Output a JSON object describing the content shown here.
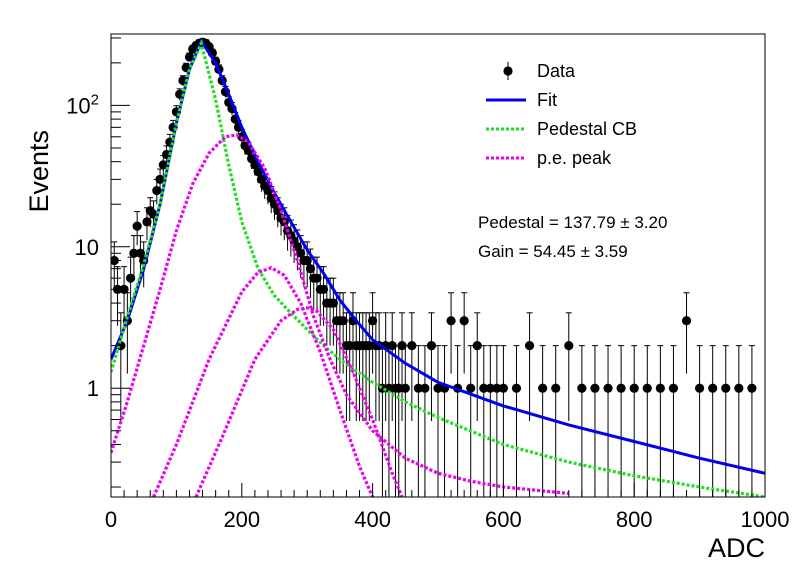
{
  "chart_data": {
    "type": "scatter",
    "title": "",
    "xlabel": "ADC",
    "ylabel": "Events",
    "xlim": [
      0,
      1000
    ],
    "ylim": [
      0.17,
      320
    ],
    "yscale": "log",
    "x_ticks": [
      0,
      200,
      400,
      600,
      800,
      1000
    ],
    "x_tick_labels": [
      "0",
      "200",
      "400",
      "600",
      "800",
      "1000"
    ],
    "y_ticks": [
      1,
      10,
      100
    ],
    "y_tick_labels": [
      "1",
      "10",
      "10^2"
    ],
    "legend": {
      "position": "top-right",
      "entries": [
        {
          "label": "Data",
          "color": "#000000",
          "style": "marker"
        },
        {
          "label": "Fit",
          "color": "#0000ee",
          "style": "solid"
        },
        {
          "label": "Pedestal CB",
          "color": "#22dd22",
          "style": "dotted"
        },
        {
          "label": "p.e. peak",
          "color": "#ee00ee",
          "style": "dotted"
        }
      ]
    },
    "annotations": [
      {
        "text": "Pedestal = 137.79",
        "error": "3.20"
      },
      {
        "text": "Gain = 54.45",
        "error": "3.59"
      }
    ],
    "data_series": {
      "name": "Data",
      "color": "#000000",
      "points": [
        [
          5,
          8
        ],
        [
          10,
          5
        ],
        [
          15,
          2
        ],
        [
          20,
          5
        ],
        [
          25,
          3
        ],
        [
          30,
          6
        ],
        [
          35,
          9
        ],
        [
          40,
          14
        ],
        [
          45,
          9
        ],
        [
          50,
          8
        ],
        [
          55,
          15
        ],
        [
          60,
          18
        ],
        [
          65,
          17
        ],
        [
          70,
          25
        ],
        [
          75,
          30
        ],
        [
          80,
          38
        ],
        [
          85,
          45
        ],
        [
          90,
          55
        ],
        [
          95,
          70
        ],
        [
          100,
          90
        ],
        [
          105,
          120
        ],
        [
          110,
          150
        ],
        [
          115,
          185
        ],
        [
          120,
          220
        ],
        [
          125,
          250
        ],
        [
          130,
          265
        ],
        [
          135,
          275
        ],
        [
          140,
          280
        ],
        [
          145,
          275
        ],
        [
          150,
          260
        ],
        [
          155,
          235
        ],
        [
          160,
          205
        ],
        [
          165,
          180
        ],
        [
          170,
          150
        ],
        [
          175,
          125
        ],
        [
          180,
          105
        ],
        [
          185,
          95
        ],
        [
          190,
          80
        ],
        [
          195,
          70
        ],
        [
          200,
          60
        ],
        [
          205,
          52
        ],
        [
          210,
          48
        ],
        [
          215,
          42
        ],
        [
          220,
          38
        ],
        [
          225,
          34
        ],
        [
          230,
          30
        ],
        [
          235,
          27
        ],
        [
          240,
          25
        ],
        [
          245,
          22
        ],
        [
          250,
          20
        ],
        [
          255,
          18
        ],
        [
          260,
          16
        ],
        [
          265,
          15
        ],
        [
          270,
          13
        ],
        [
          275,
          12
        ],
        [
          280,
          11
        ],
        [
          285,
          10
        ],
        [
          290,
          9
        ],
        [
          295,
          8
        ],
        [
          300,
          8
        ],
        [
          305,
          7
        ],
        [
          310,
          6
        ],
        [
          315,
          6
        ],
        [
          320,
          5
        ],
        [
          325,
          5
        ],
        [
          330,
          4
        ],
        [
          335,
          4
        ],
        [
          340,
          4
        ],
        [
          345,
          3
        ],
        [
          350,
          3
        ],
        [
          355,
          3
        ],
        [
          360,
          2
        ],
        [
          365,
          2
        ],
        [
          370,
          3
        ],
        [
          375,
          2
        ],
        [
          380,
          2
        ],
        [
          385,
          2
        ],
        [
          390,
          2
        ],
        [
          395,
          2
        ],
        [
          400,
          3
        ],
        [
          405,
          2
        ],
        [
          410,
          2
        ],
        [
          415,
          1
        ],
        [
          420,
          2
        ],
        [
          425,
          1
        ],
        [
          430,
          2
        ],
        [
          435,
          1
        ],
        [
          440,
          1
        ],
        [
          445,
          2
        ],
        [
          450,
          1
        ],
        [
          460,
          2
        ],
        [
          470,
          1
        ],
        [
          480,
          1
        ],
        [
          490,
          2
        ],
        [
          500,
          1
        ],
        [
          510,
          1
        ],
        [
          520,
          3
        ],
        [
          530,
          1
        ],
        [
          540,
          3
        ],
        [
          550,
          1
        ],
        [
          560,
          2
        ],
        [
          570,
          1
        ],
        [
          580,
          1
        ],
        [
          590,
          1
        ],
        [
          600,
          1
        ],
        [
          620,
          1
        ],
        [
          640,
          2
        ],
        [
          660,
          1
        ],
        [
          680,
          1
        ],
        [
          700,
          2
        ],
        [
          720,
          1
        ],
        [
          740,
          1
        ],
        [
          760,
          1
        ],
        [
          780,
          1
        ],
        [
          800,
          1
        ],
        [
          820,
          1
        ],
        [
          840,
          1
        ],
        [
          860,
          1
        ],
        [
          880,
          3
        ],
        [
          900,
          1
        ],
        [
          920,
          1
        ],
        [
          940,
          1
        ],
        [
          960,
          1
        ],
        [
          980,
          1
        ]
      ]
    },
    "curves": [
      {
        "name": "Fit",
        "color": "#0000ee",
        "style": "solid",
        "x": [
          0,
          25,
          50,
          75,
          100,
          120,
          138,
          160,
          180,
          200,
          225,
          250,
          275,
          300,
          325,
          350,
          375,
          400,
          450,
          500,
          600,
          700,
          800,
          900,
          1000
        ],
        "y": [
          1.6,
          3.0,
          7.0,
          20,
          75,
          180,
          285,
          200,
          120,
          70,
          40,
          24,
          15,
          9.5,
          6.5,
          4.2,
          3.0,
          2.2,
          1.5,
          1.1,
          0.75,
          0.55,
          0.42,
          0.32,
          0.25
        ]
      },
      {
        "name": "Pedestal CB",
        "color": "#22dd22",
        "style": "dotted",
        "x": [
          0,
          25,
          50,
          75,
          100,
          120,
          138,
          160,
          180,
          200,
          225,
          250,
          275,
          300,
          325,
          350,
          400,
          450,
          500,
          600,
          700,
          800,
          900,
          1000
        ],
        "y": [
          1.3,
          3.2,
          7.5,
          20,
          75,
          180,
          275,
          110,
          38,
          15,
          7.0,
          4.5,
          3.4,
          2.6,
          2.0,
          1.6,
          1.1,
          0.8,
          0.62,
          0.4,
          0.3,
          0.24,
          0.2,
          0.17
        ]
      },
      {
        "name": "p.e. peak 1",
        "color": "#ee00ee",
        "style": "dotted",
        "x": [
          0,
          25,
          50,
          75,
          100,
          125,
          150,
          175,
          192,
          210,
          235,
          260,
          285,
          310,
          335,
          360,
          400,
          450,
          500,
          550,
          600,
          650,
          700
        ],
        "y": [
          0.35,
          0.8,
          2.0,
          5.0,
          13,
          28,
          46,
          60,
          62,
          55,
          36,
          18,
          8.0,
          3.2,
          1.6,
          0.9,
          0.5,
          0.32,
          0.25,
          0.22,
          0.2,
          0.19,
          0.18
        ]
      },
      {
        "name": "p.e. peak 2",
        "color": "#ee00ee",
        "style": "dotted",
        "x": [
          65,
          100,
          150,
          200,
          225,
          245,
          265,
          290,
          320,
          350,
          380,
          400,
          430,
          450
        ],
        "y": [
          0.17,
          0.4,
          1.6,
          4.8,
          6.6,
          7.1,
          6.3,
          4.0,
          1.8,
          0.7,
          0.28,
          0.17,
          0.13,
          0.12
        ]
      },
      {
        "name": "p.e. peak 3",
        "color": "#ee00ee",
        "style": "dotted",
        "x": [
          130,
          170,
          220,
          260,
          285,
          300,
          315,
          340,
          370,
          400,
          430,
          450
        ],
        "y": [
          0.17,
          0.45,
          1.6,
          3.0,
          3.6,
          3.7,
          3.5,
          2.6,
          1.3,
          0.6,
          0.25,
          0.15
        ]
      }
    ]
  }
}
